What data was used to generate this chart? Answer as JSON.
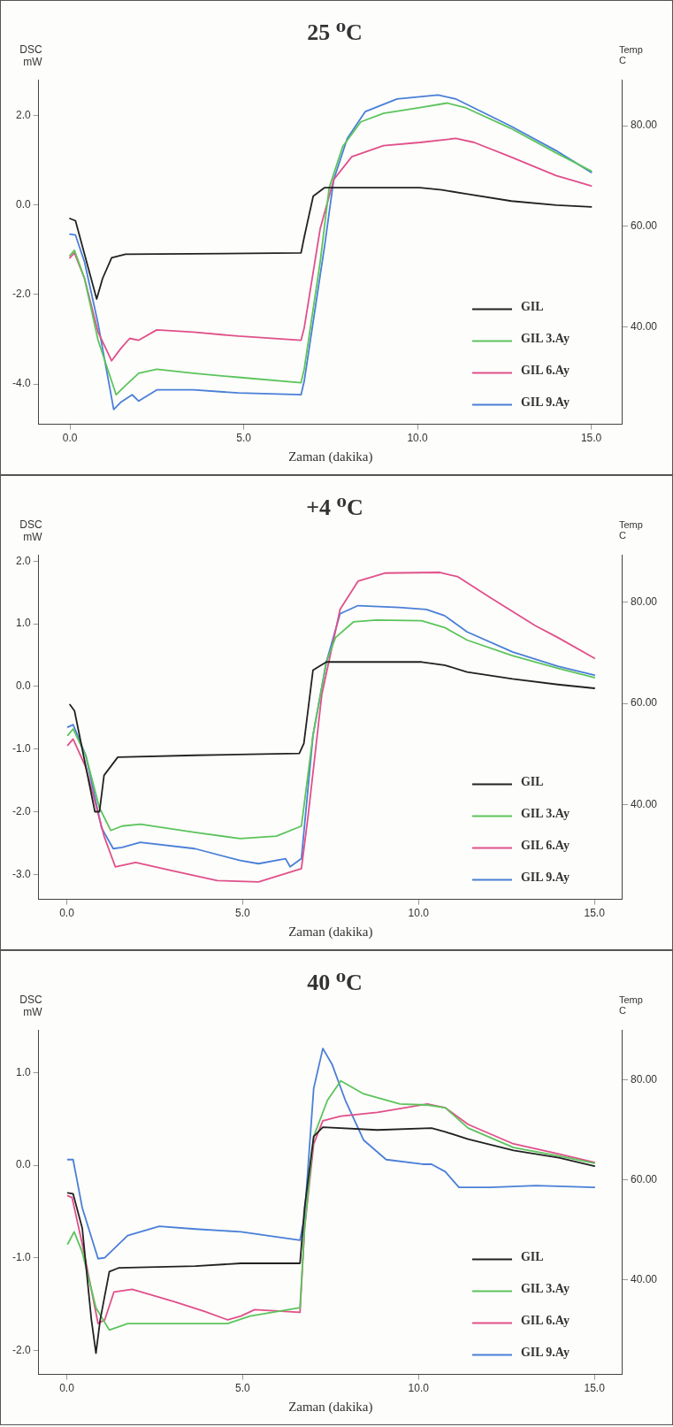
{
  "chart_data": [
    {
      "type": "line",
      "title": "25 ⁰C",
      "xlabel": "Zaman (dakika)",
      "ylabel": "DSC mW",
      "y2label": "Temp C",
      "legend": "bottom right",
      "marker": "none",
      "xlim": [
        -0.9,
        15.9
      ],
      "xticks": [
        {
          "value": 0,
          "label": "0.0"
        },
        {
          "value": 5,
          "label": "5.0"
        },
        {
          "value": 10,
          "label": "10.0"
        },
        {
          "value": 15,
          "label": "15.0"
        }
      ],
      "ylim": [
        -4.9,
        2.8
      ],
      "yticks": [
        {
          "value": -4,
          "label": "-4.0"
        },
        {
          "value": -2,
          "label": "-2.0"
        },
        {
          "value": 0,
          "label": "0.0"
        },
        {
          "value": 2,
          "label": "2.0"
        }
      ],
      "y2lim": [
        20.7,
        89.1
      ],
      "y2ticks": [
        {
          "value": 40,
          "label": "40.00"
        },
        {
          "value": 60,
          "label": "60.00"
        },
        {
          "value": 80,
          "label": "80.00"
        }
      ],
      "series": [
        {
          "name": "GIL",
          "color": "#222222",
          "x": [
            0,
            0.16,
            0.77,
            0.94,
            1.2,
            1.6,
            3.5,
            6.65,
            6.74,
            7.0,
            7.33,
            10.07,
            10.7,
            11.4,
            12.7,
            14.0,
            15
          ],
          "values": [
            -0.3,
            -0.35,
            -2.1,
            -1.64,
            -1.18,
            -1.1,
            -1.09,
            -1.07,
            -0.72,
            0.2,
            0.39,
            0.39,
            0.34,
            0.25,
            0.09,
            0,
            -0.04
          ]
        },
        {
          "name": "GIL 3.Ay",
          "color": "#5cc45c",
          "x": [
            0,
            0.13,
            0.42,
            0.81,
            1.33,
            1.59,
            1.98,
            2.5,
            3.55,
            4.85,
            6.65,
            6.74,
            7.2,
            7.46,
            7.85,
            8.37,
            9.02,
            10.07,
            10.85,
            11.37,
            12.67,
            13.98,
            15
          ],
          "values": [
            -1.13,
            -1.01,
            -1.64,
            -3.02,
            -4.24,
            -4.04,
            -3.76,
            -3.67,
            -3.76,
            -3.85,
            -3.97,
            -3.67,
            -1.27,
            0.39,
            1.31,
            1.86,
            2.05,
            2.18,
            2.28,
            2.18,
            1.72,
            1.17,
            0.76
          ]
        },
        {
          "name": "GIL 6.Ay",
          "color": "#e0508a",
          "x": [
            0,
            0.13,
            0.42,
            0.81,
            1.2,
            1.46,
            1.72,
            1.98,
            2.5,
            3.55,
            4.85,
            6.65,
            6.74,
            7.2,
            7.59,
            8.11,
            9.02,
            10.07,
            11.1,
            11.63,
            12.67,
            13.98,
            15
          ],
          "values": [
            -1.18,
            -1.07,
            -1.64,
            -2.84,
            -3.48,
            -3.21,
            -2.98,
            -3.02,
            -2.79,
            -2.84,
            -2.93,
            -3.02,
            -2.75,
            -0.53,
            0.57,
            1.08,
            1.33,
            1.4,
            1.49,
            1.4,
            1.08,
            0.66,
            0.43
          ]
        },
        {
          "name": "GIL 9.Ay",
          "color": "#4a7fd8",
          "x": [
            0,
            0.16,
            0.42,
            0.81,
            1.26,
            1.46,
            1.79,
            1.98,
            2.5,
            3.55,
            4.85,
            6.65,
            6.74,
            7.33,
            7.59,
            7.98,
            8.5,
            9.41,
            10.59,
            11.11,
            12.67,
            13.98,
            15
          ],
          "values": [
            -0.65,
            -0.67,
            -1.27,
            -2.65,
            -4.57,
            -4.41,
            -4.24,
            -4.38,
            -4.13,
            -4.13,
            -4.2,
            -4.24,
            -3.94,
            -0.9,
            0.57,
            1.49,
            2.09,
            2.37,
            2.46,
            2.37,
            1.77,
            1.22,
            0.73
          ]
        }
      ]
    },
    {
      "type": "line",
      "title": "+4 ⁰C",
      "xlabel": "Zaman (dakika)",
      "ylabel": "DSC mW",
      "y2label": "Temp C",
      "legend": "bottom right",
      "marker": "none",
      "xlim": [
        -0.8,
        15.8
      ],
      "xticks": [
        {
          "value": 0,
          "label": "0.0"
        },
        {
          "value": 5,
          "label": "5.0"
        },
        {
          "value": 10,
          "label": "10.0"
        },
        {
          "value": 15,
          "label": "15.0"
        }
      ],
      "ylim": [
        -3.4,
        2.1
      ],
      "yticks": [
        {
          "value": -3,
          "label": "-3.0"
        },
        {
          "value": -2,
          "label": "-2.0"
        },
        {
          "value": -1,
          "label": "-1.0"
        },
        {
          "value": 0,
          "label": "0.0"
        },
        {
          "value": 1,
          "label": "1.0"
        },
        {
          "value": 2,
          "label": "2.0"
        }
      ],
      "y2lim": [
        21.2,
        89.4
      ],
      "y2ticks": [
        {
          "value": 40,
          "label": "40.00"
        },
        {
          "value": 60,
          "label": "60.00"
        },
        {
          "value": 80,
          "label": "80.00"
        }
      ],
      "series": [
        {
          "name": "GIL",
          "color": "#222222",
          "x": [
            0.09,
            0.22,
            0.8,
            0.93,
            1.06,
            1.45,
            3.64,
            6.61,
            6.74,
            7.0,
            7.38,
            10.09,
            10.74,
            11.38,
            12.67,
            13.96,
            15
          ],
          "values": [
            -0.29,
            -0.39,
            -2.0,
            -2.0,
            -1.42,
            -1.13,
            -1.1,
            -1.07,
            -0.91,
            0.26,
            0.39,
            0.39,
            0.34,
            0.23,
            0.12,
            0.03,
            -0.03
          ]
        },
        {
          "name": "GIL 3.Ay",
          "color": "#5cc45c",
          "x": [
            0.03,
            0.18,
            0.54,
            0.93,
            1.25,
            1.57,
            2.09,
            3.64,
            4.93,
            5.96,
            6.67,
            7.0,
            7.38,
            7.64,
            8.15,
            8.8,
            10.09,
            10.74,
            11.38,
            12.67,
            13.96,
            15
          ],
          "values": [
            -0.78,
            -0.68,
            -1.1,
            -1.94,
            -2.3,
            -2.23,
            -2.2,
            -2.33,
            -2.43,
            -2.39,
            -2.23,
            -0.78,
            0.39,
            0.78,
            1.03,
            1.06,
            1.05,
            0.94,
            0.74,
            0.49,
            0.29,
            0.14
          ]
        },
        {
          "name": "GIL 6.Ay",
          "color": "#e0508a",
          "x": [
            0.03,
            0.18,
            0.54,
            1.06,
            1.38,
            1.96,
            2.99,
            4.28,
            5.45,
            6.67,
            6.86,
            7.25,
            7.77,
            8.28,
            9.06,
            10.61,
            11.12,
            12.03,
            13.32,
            13.96,
            15
          ],
          "values": [
            -0.94,
            -0.84,
            -1.29,
            -2.39,
            -2.88,
            -2.81,
            -2.94,
            -3.1,
            -3.12,
            -2.91,
            -2.07,
            -0.13,
            1.23,
            1.68,
            1.81,
            1.82,
            1.75,
            1.42,
            0.97,
            0.78,
            0.45
          ]
        },
        {
          "name": "GIL 9.Ay",
          "color": "#4a7fd8",
          "x": [
            0.03,
            0.18,
            0.54,
            0.99,
            1.32,
            1.57,
            2.09,
            3.64,
            4.93,
            5.45,
            6.22,
            6.35,
            6.67,
            7.0,
            7.38,
            7.77,
            8.28,
            9.45,
            10.22,
            10.74,
            11.38,
            12.67,
            13.96,
            15
          ],
          "values": [
            -0.65,
            -0.61,
            -1.1,
            -2.26,
            -2.59,
            -2.57,
            -2.49,
            -2.59,
            -2.78,
            -2.83,
            -2.75,
            -2.88,
            -2.75,
            -0.78,
            0.39,
            1.16,
            1.29,
            1.26,
            1.23,
            1.13,
            0.87,
            0.55,
            0.32,
            0.18
          ]
        }
      ]
    },
    {
      "type": "line",
      "title": "40 ⁰C",
      "xlabel": "Zaman (dakika)",
      "ylabel": "DSC mW",
      "y2label": "Temp C",
      "legend": "bottom right",
      "marker": "none",
      "xlim": [
        -0.8,
        15.8
      ],
      "xticks": [
        {
          "value": 0,
          "label": "0.0"
        },
        {
          "value": 5,
          "label": "5.0"
        },
        {
          "value": 10,
          "label": "10.0"
        },
        {
          "value": 15,
          "label": "15.0"
        }
      ],
      "ylim": [
        -2.26,
        1.46
      ],
      "yticks": [
        {
          "value": -2,
          "label": "-2.0"
        },
        {
          "value": -1,
          "label": "-1.0"
        },
        {
          "value": 0,
          "label": "0.0"
        },
        {
          "value": 1,
          "label": "1.0"
        }
      ],
      "y2lim": [
        21.0,
        90.0
      ],
      "y2ticks": [
        {
          "value": 40,
          "label": "40.00"
        },
        {
          "value": 60,
          "label": "60.00"
        },
        {
          "value": 80,
          "label": "80.00"
        }
      ],
      "series": [
        {
          "name": "GIL",
          "color": "#222222",
          "x": [
            0.03,
            0.18,
            0.44,
            0.7,
            0.83,
            0.95,
            1.21,
            1.47,
            3.66,
            4.95,
            6.63,
            6.76,
            7.02,
            7.28,
            8.83,
            10.37,
            10.76,
            11.41,
            12.7,
            13.99,
            15
          ],
          "values": [
            -0.3,
            -0.31,
            -0.68,
            -1.67,
            -2.03,
            -1.67,
            -1.15,
            -1.11,
            -1.09,
            -1.06,
            -1.06,
            -0.46,
            0.31,
            0.41,
            0.38,
            0.4,
            0.36,
            0.28,
            0.16,
            0.08,
            -0.01
          ]
        },
        {
          "name": "GIL 3.Ay",
          "color": "#5cc45c",
          "x": [
            0.03,
            0.21,
            0.44,
            0.83,
            1.21,
            1.73,
            3.02,
            4.57,
            5.21,
            6.63,
            6.76,
            7.02,
            7.41,
            7.79,
            8.44,
            9.47,
            10.25,
            10.76,
            11.41,
            12.7,
            13.99,
            15
          ],
          "values": [
            -0.85,
            -0.72,
            -0.94,
            -1.54,
            -1.78,
            -1.71,
            -1.71,
            -1.71,
            -1.63,
            -1.54,
            -0.68,
            0.31,
            0.7,
            0.91,
            0.77,
            0.66,
            0.65,
            0.62,
            0.4,
            0.19,
            0.1,
            0.02
          ]
        },
        {
          "name": "GIL 6.Ay",
          "color": "#e0508a",
          "x": [
            0.03,
            0.15,
            0.44,
            0.89,
            1.08,
            1.34,
            1.86,
            3.02,
            3.92,
            4.57,
            4.95,
            5.34,
            6.63,
            6.76,
            7.02,
            7.28,
            7.79,
            8.83,
            10.25,
            10.76,
            11.41,
            12.7,
            13.99,
            15
          ],
          "values": [
            -0.33,
            -0.35,
            -0.85,
            -1.71,
            -1.67,
            -1.37,
            -1.34,
            -1.47,
            -1.58,
            -1.67,
            -1.63,
            -1.56,
            -1.59,
            -0.68,
            0.23,
            0.48,
            0.53,
            0.57,
            0.66,
            0.62,
            0.44,
            0.23,
            0.12,
            0.03
          ]
        },
        {
          "name": "GIL 9.Ay",
          "color": "#4a7fd8",
          "x": [
            0.03,
            0.18,
            0.44,
            0.89,
            1.08,
            1.73,
            2.63,
            3.66,
            4.95,
            6.63,
            6.76,
            7.02,
            7.28,
            7.54,
            7.92,
            8.44,
            9.08,
            10.12,
            10.37,
            10.76,
            11.15,
            12.05,
            13.34,
            15
          ],
          "values": [
            0.06,
            0.06,
            -0.46,
            -1.01,
            -1.0,
            -0.76,
            -0.66,
            -0.69,
            -0.72,
            -0.81,
            -0.55,
            0.83,
            1.26,
            1.09,
            0.7,
            0.27,
            0.06,
            0.01,
            0.01,
            -0.07,
            -0.24,
            -0.24,
            -0.22,
            -0.24
          ]
        }
      ]
    }
  ]
}
